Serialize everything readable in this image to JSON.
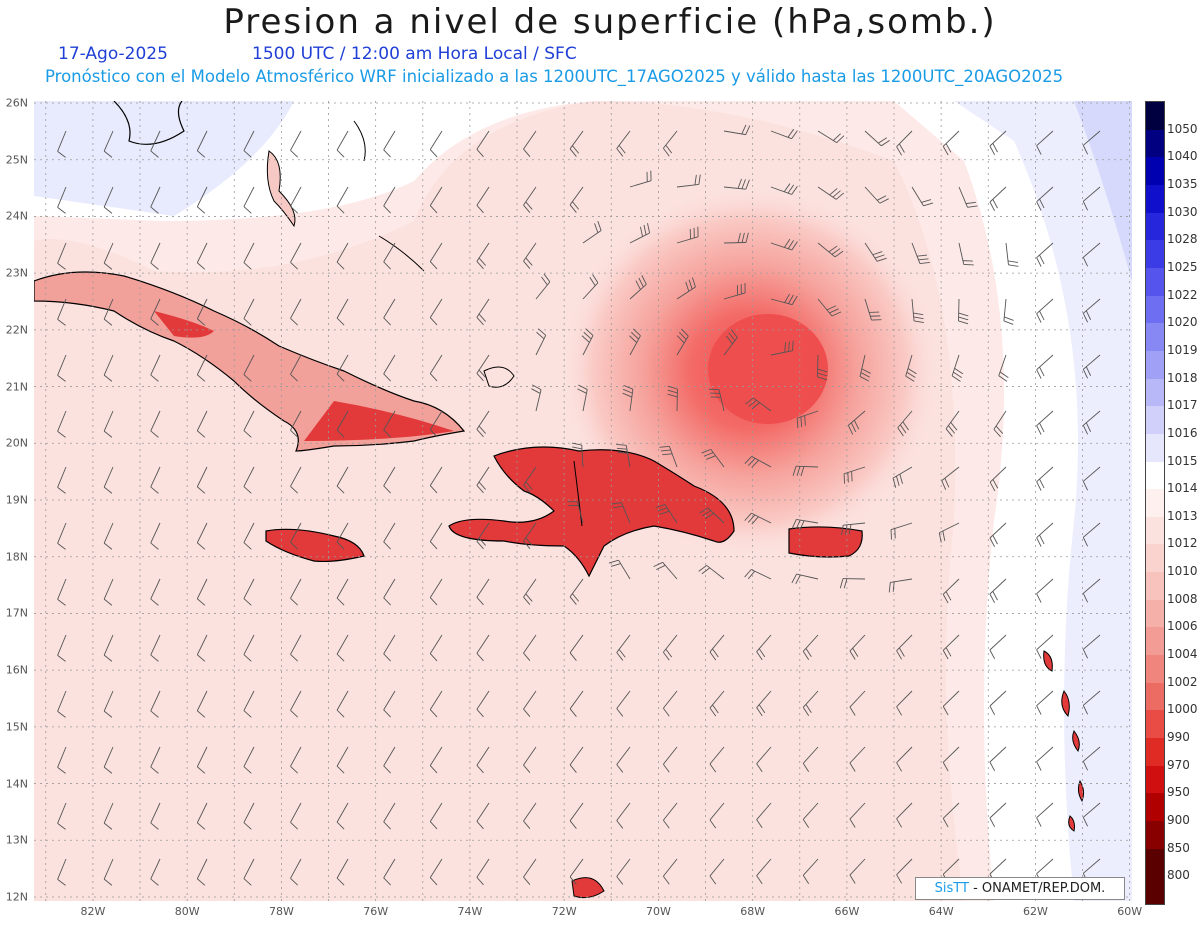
{
  "title": "Presion a nivel de superficie (hPa,somb.)",
  "date": "17-Ago-2025",
  "time": "1500 UTC / 12:00 am Hora Local / SFC",
  "subtitle": "Pronóstico con el Modelo Atmosférico WRF inicializado a las 1200UTC_17AGO2025 y válido hasta las  1200UTC_20AGO2025",
  "credit": {
    "brand": "SisTT",
    "org": " - ONAMET/REP.DOM."
  },
  "map": {
    "lat_labels": [
      "26N",
      "25N",
      "24N",
      "23N",
      "22N",
      "21N",
      "20N",
      "19N",
      "18N",
      "17N",
      "16N",
      "15N",
      "14N",
      "13N",
      "12N"
    ],
    "lon_labels": [
      "82W",
      "80W",
      "78W",
      "76W",
      "74W",
      "72W",
      "70W",
      "68W",
      "66W",
      "64W",
      "62W",
      "60W"
    ],
    "low_center": {
      "lat": 21.3,
      "lon": -67.4
    },
    "colors": {
      "land_low": "#e23a3a",
      "background": "#fde6e4",
      "high": "#d8dcfb",
      "coast": "#000000",
      "grid": "#9a9a9a",
      "barb": "#555555"
    }
  },
  "legend": {
    "levels": [
      "1050",
      "1040",
      "1035",
      "1030",
      "1028",
      "1025",
      "1022",
      "1020",
      "1019",
      "1018",
      "1017",
      "1016",
      "1015",
      "1014",
      "1013",
      "1012",
      "1010",
      "1008",
      "1006",
      "1004",
      "1002",
      "1000",
      "990",
      "970",
      "950",
      "900",
      "850",
      "800"
    ],
    "colors": [
      "#000040",
      "#000080",
      "#0000b0",
      "#1010cc",
      "#2626dd",
      "#3c3ce6",
      "#5555ee",
      "#6e6ef2",
      "#8888f5",
      "#a0a0f7",
      "#b8b8f9",
      "#d0d0fb",
      "#e6e6fd",
      "#ffffff",
      "#fdf0ee",
      "#fce2df",
      "#fad3cf",
      "#f8c2bd",
      "#f5b0aa",
      "#f39c95",
      "#f0857d",
      "#ec6b62",
      "#e84c44",
      "#e02a24",
      "#d01010",
      "#b00000",
      "#880000",
      "#5a0000"
    ]
  }
}
